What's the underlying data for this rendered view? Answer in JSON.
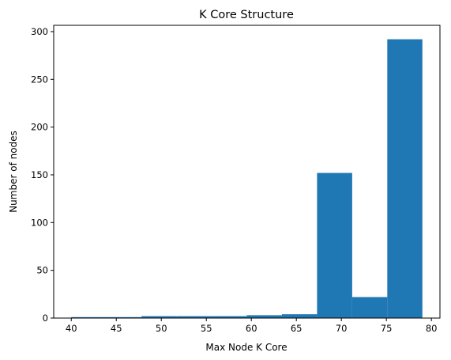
{
  "chart_data": {
    "type": "bar",
    "title": "K Core Structure",
    "xlabel": "Max Node K Core",
    "ylabel": "Number of nodes",
    "xlim": [
      38.05,
      80.95
    ],
    "ylim": [
      0,
      306.6
    ],
    "xticks": [
      40,
      45,
      50,
      55,
      60,
      65,
      70,
      75,
      80
    ],
    "yticks": [
      0,
      50,
      100,
      150,
      200,
      250,
      300
    ],
    "grid": false,
    "bar_color": "#1f77b4",
    "bins": [
      {
        "x0": 40.0,
        "x1": 43.9,
        "value": 1
      },
      {
        "x0": 43.9,
        "x1": 47.8,
        "value": 1
      },
      {
        "x0": 47.8,
        "x1": 51.7,
        "value": 2
      },
      {
        "x0": 51.7,
        "x1": 55.6,
        "value": 2
      },
      {
        "x0": 55.6,
        "x1": 59.5,
        "value": 2
      },
      {
        "x0": 59.5,
        "x1": 63.4,
        "value": 3
      },
      {
        "x0": 63.4,
        "x1": 67.3,
        "value": 4
      },
      {
        "x0": 67.3,
        "x1": 71.2,
        "value": 152
      },
      {
        "x0": 71.2,
        "x1": 75.1,
        "value": 22
      },
      {
        "x0": 75.1,
        "x1": 79.0,
        "value": 292
      }
    ]
  }
}
